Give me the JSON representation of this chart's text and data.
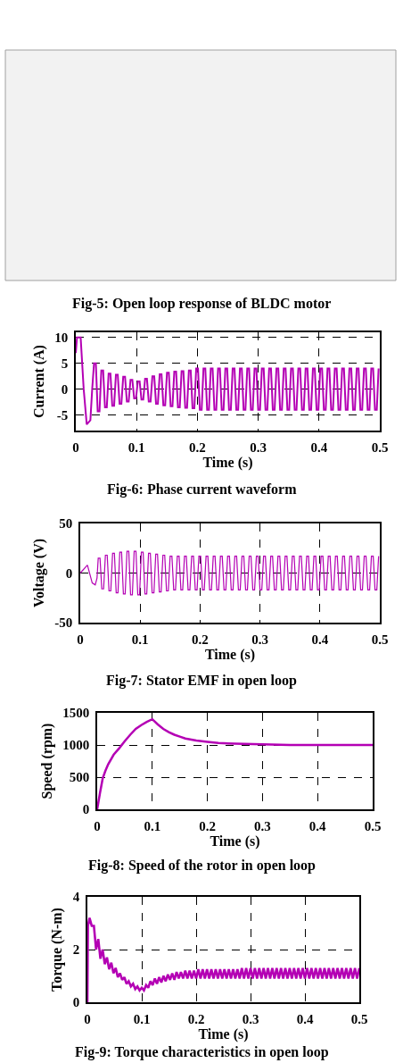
{
  "chart_data": [
    {
      "type": "other",
      "annotations": [
        "Fig-5: Open loop response of BLDC motor"
      ]
    },
    {
      "type": "line",
      "xlabel": "Time (s)",
      "ylabel": "Current (A)",
      "color": "#b400b4",
      "xlim": [
        0,
        0.5
      ],
      "ylim": [
        -8,
        11
      ],
      "xticks": [
        0,
        0.1,
        0.2,
        0.3,
        0.4,
        0.5
      ],
      "yticks": [
        -5,
        0,
        5,
        10
      ],
      "grid": true,
      "annotations": [
        "Fig-6: Phase current waveform"
      ],
      "x": [
        0,
        0.002,
        0.008,
        0.013,
        0.018,
        0.024,
        0.027,
        0.03,
        0.033,
        0.036,
        0.039,
        0.042,
        0.045,
        0.048,
        0.051,
        0.054,
        0.057,
        0.06,
        0.063,
        0.066,
        0.069,
        0.072,
        0.075,
        0.078,
        0.081,
        0.084,
        0.087,
        0.09,
        0.093,
        0.096,
        0.099,
        0.102,
        0.105,
        0.108,
        0.111,
        0.114,
        0.117,
        0.12,
        0.123,
        0.126,
        0.129,
        0.132,
        0.135,
        0.138,
        0.141,
        0.144,
        0.147,
        0.15,
        0.153,
        0.156,
        0.159,
        0.162,
        0.165,
        0.168,
        0.171,
        0.174,
        0.177,
        0.18,
        0.183,
        0.186,
        0.189,
        0.192,
        0.195,
        0.198,
        0.201,
        0.204,
        0.207,
        0.21,
        0.213,
        0.216,
        0.219,
        0.222,
        0.225,
        0.228,
        0.231,
        0.234,
        0.237,
        0.24,
        0.243,
        0.246,
        0.249,
        0.252,
        0.255,
        0.258,
        0.261,
        0.264,
        0.267,
        0.27,
        0.273,
        0.276,
        0.279,
        0.282,
        0.285,
        0.288,
        0.291,
        0.294,
        0.297,
        0.3,
        0.303,
        0.306,
        0.309,
        0.312,
        0.315,
        0.318,
        0.321,
        0.324,
        0.327,
        0.33,
        0.333,
        0.336,
        0.339,
        0.342,
        0.345,
        0.348,
        0.351,
        0.354,
        0.357,
        0.36,
        0.363,
        0.366,
        0.369,
        0.372,
        0.375,
        0.378,
        0.381,
        0.384,
        0.387,
        0.39,
        0.393,
        0.396,
        0.399,
        0.402,
        0.405,
        0.408,
        0.411,
        0.414,
        0.417,
        0.42,
        0.423,
        0.426,
        0.429,
        0.432,
        0.435,
        0.438,
        0.441,
        0.444,
        0.447,
        0.45,
        0.453,
        0.456,
        0.459,
        0.462,
        0.465,
        0.468,
        0.471,
        0.474,
        0.477,
        0.48,
        0.483,
        0.486,
        0.489,
        0.492,
        0.495,
        0.498
      ],
      "values": [
        7,
        10,
        10,
        0,
        -6.8,
        -6,
        0,
        5,
        5,
        -4.3,
        -4.3,
        3.6,
        3.6,
        -3.5,
        -3.5,
        3,
        3,
        -3.2,
        -3.2,
        2.8,
        2.8,
        -2.8,
        -2.8,
        2.4,
        2.4,
        -2.4,
        -2.4,
        1.8,
        1.8,
        -1.8,
        -1.8,
        1.5,
        1.5,
        -2,
        -2,
        2,
        2,
        -2.4,
        -2.4,
        2.5,
        2.5,
        -2.8,
        -2.8,
        2.9,
        2.9,
        -3.1,
        -3.1,
        3.2,
        3.2,
        -3.3,
        -3.3,
        3.4,
        3.4,
        -3.5,
        -3.5,
        3.5,
        3.5,
        -3.6,
        -3.6,
        3.6,
        3.6,
        -3.7,
        -3.7,
        4,
        4,
        -4,
        -4,
        4,
        4,
        -4,
        -4,
        4,
        4,
        -4,
        -4,
        4,
        4,
        -4,
        -4,
        4,
        4,
        -4,
        -4,
        4,
        4,
        -4,
        -4,
        4,
        4,
        -4,
        -4,
        4,
        4,
        -4,
        -4,
        4,
        4,
        -4,
        -4,
        4,
        4,
        -4,
        -4,
        4,
        4,
        -4,
        -4,
        4,
        4,
        -4,
        -4,
        4,
        4,
        -4,
        -4,
        4,
        4,
        -4,
        -4,
        4,
        4,
        -4,
        -4,
        4,
        4,
        -4,
        -4,
        4,
        4,
        -4,
        -4,
        4,
        4,
        -4,
        -4,
        4,
        4,
        -4,
        -4,
        4,
        4,
        -4,
        -4,
        4,
        4,
        -4,
        -4,
        4,
        4,
        -4,
        -4,
        4,
        4,
        -4,
        -4,
        4,
        4,
        -4,
        -4,
        4,
        4,
        -4,
        -4,
        4
      ]
    },
    {
      "type": "line",
      "xlabel": "Time (s)",
      "ylabel": "Voltage (V)",
      "color": "#b400b4",
      "xlim": [
        0,
        0.5
      ],
      "ylim": [
        -50,
        50
      ],
      "xticks": [
        0,
        0.1,
        0.2,
        0.3,
        0.4,
        0.5
      ],
      "yticks": [
        -50,
        0,
        50
      ],
      "grid": true,
      "annotations": [
        "Fig-7: Stator EMF in open loop"
      ],
      "x": [
        0,
        0.012,
        0.02,
        0.025,
        0.028,
        0.03,
        0.033,
        0.036,
        0.039,
        0.042,
        0.045,
        0.048,
        0.051,
        0.054,
        0.057,
        0.06,
        0.063,
        0.066,
        0.069,
        0.072,
        0.075,
        0.078,
        0.081,
        0.084,
        0.087,
        0.09,
        0.093,
        0.096,
        0.099,
        0.102,
        0.105,
        0.108,
        0.111,
        0.114,
        0.117,
        0.12,
        0.123,
        0.126,
        0.129,
        0.132,
        0.135,
        0.138,
        0.141,
        0.144,
        0.147,
        0.15,
        0.153,
        0.156,
        0.159,
        0.162,
        0.165,
        0.168,
        0.171,
        0.174,
        0.177,
        0.18,
        0.183,
        0.186,
        0.189,
        0.192,
        0.195,
        0.198,
        0.201,
        0.204,
        0.207,
        0.21,
        0.213,
        0.216,
        0.219,
        0.222,
        0.225,
        0.228,
        0.231,
        0.234,
        0.237,
        0.24,
        0.243,
        0.246,
        0.249,
        0.252,
        0.255,
        0.258,
        0.261,
        0.264,
        0.267,
        0.27,
        0.273,
        0.276,
        0.279,
        0.282,
        0.285,
        0.288,
        0.291,
        0.294,
        0.297,
        0.3,
        0.303,
        0.306,
        0.309,
        0.312,
        0.315,
        0.318,
        0.321,
        0.324,
        0.327,
        0.33,
        0.333,
        0.336,
        0.339,
        0.342,
        0.345,
        0.348,
        0.351,
        0.354,
        0.357,
        0.36,
        0.363,
        0.366,
        0.369,
        0.372,
        0.375,
        0.378,
        0.381,
        0.384,
        0.387,
        0.39,
        0.393,
        0.396,
        0.399,
        0.402,
        0.405,
        0.408,
        0.411,
        0.414,
        0.417,
        0.42,
        0.423,
        0.426,
        0.429,
        0.432,
        0.435,
        0.438,
        0.441,
        0.444,
        0.447,
        0.45,
        0.453,
        0.456,
        0.459,
        0.462,
        0.465,
        0.468,
        0.471,
        0.474,
        0.477,
        0.48,
        0.483,
        0.486,
        0.489,
        0.492,
        0.495,
        0.498
      ],
      "values": [
        0,
        8,
        -10,
        -12,
        -5,
        15,
        15,
        -16,
        -16,
        18,
        18,
        -18,
        -18,
        20,
        20,
        -20,
        -20,
        21,
        21,
        -21,
        -21,
        22,
        22,
        -22,
        -22,
        22,
        22,
        -22,
        -22,
        21,
        21,
        -21,
        -21,
        20,
        20,
        -20,
        -20,
        19,
        19,
        -19,
        -19,
        18,
        18,
        -18,
        -18,
        17,
        17,
        -17,
        -17,
        17,
        17,
        -17,
        -17,
        17,
        17,
        -17,
        -17,
        17,
        17,
        -17,
        -17,
        17,
        17,
        -17,
        -17,
        17,
        17,
        -17,
        -17,
        17,
        17,
        -17,
        -17,
        17,
        17,
        -17,
        -17,
        17,
        17,
        -17,
        -17,
        17,
        17,
        -17,
        -17,
        17,
        17,
        -17,
        -17,
        17,
        17,
        -17,
        -17,
        17,
        17,
        -17,
        -17,
        17,
        17,
        -17,
        -17,
        17,
        17,
        -17,
        -17,
        17,
        17,
        -17,
        -17,
        17,
        17,
        -17,
        -17,
        17,
        17,
        -17,
        -17,
        17,
        17,
        -17,
        -17,
        17,
        17,
        -17,
        -17,
        17,
        17,
        -17,
        -17,
        17,
        17,
        -17,
        -17,
        17,
        17,
        -17,
        -17,
        17,
        17,
        -17,
        -17,
        17,
        17,
        -17,
        -17,
        17,
        17,
        -17,
        -17,
        17,
        17,
        -17,
        -17,
        17,
        17,
        -17,
        -17,
        17,
        17,
        -17,
        -17,
        17
      ]
    },
    {
      "type": "line",
      "xlabel": "Time (s)",
      "ylabel": "Speed (rpm)",
      "color": "#b400b4",
      "xlim": [
        0,
        0.5
      ],
      "ylim": [
        0,
        1500
      ],
      "xticks": [
        0,
        0.1,
        0.2,
        0.3,
        0.4,
        0.5
      ],
      "yticks": [
        0,
        500,
        1000,
        1500
      ],
      "grid": true,
      "annotations": [
        "Fig-8: Speed of the rotor in open loop"
      ],
      "x": [
        0,
        0.002,
        0.005,
        0.01,
        0.015,
        0.02,
        0.03,
        0.04,
        0.05,
        0.06,
        0.07,
        0.08,
        0.09,
        0.1,
        0.11,
        0.12,
        0.13,
        0.14,
        0.15,
        0.16,
        0.18,
        0.2,
        0.22,
        0.25,
        0.3,
        0.35,
        0.4,
        0.5
      ],
      "values": [
        0,
        100,
        250,
        480,
        600,
        700,
        850,
        950,
        1060,
        1160,
        1250,
        1310,
        1360,
        1400,
        1320,
        1250,
        1200,
        1160,
        1130,
        1100,
        1070,
        1050,
        1030,
        1020,
        1010,
        1000,
        1000,
        1000
      ]
    },
    {
      "type": "line",
      "xlabel": "Time (s)",
      "ylabel": "Torque (N-m)",
      "color": "#b400b4",
      "xlim": [
        0,
        0.5
      ],
      "ylim": [
        0,
        4
      ],
      "xticks": [
        0,
        0.1,
        0.2,
        0.3,
        0.4,
        0.5
      ],
      "yticks": [
        0,
        2,
        4
      ],
      "grid": true,
      "annotations": [
        "Fig-9: Torque characteristics in open loop"
      ],
      "x": [
        0,
        0.001,
        0.004,
        0.008,
        0.012,
        0.016,
        0.02,
        0.024,
        0.028,
        0.032,
        0.036,
        0.04,
        0.044,
        0.048,
        0.052,
        0.056,
        0.06,
        0.064,
        0.068,
        0.072,
        0.076,
        0.08,
        0.084,
        0.088,
        0.092,
        0.096,
        0.1,
        0.104,
        0.108,
        0.112,
        0.116,
        0.12,
        0.124,
        0.128,
        0.132,
        0.136,
        0.14,
        0.144,
        0.148,
        0.152,
        0.156,
        0.16,
        0.164,
        0.168,
        0.172,
        0.176,
        0.18,
        0.184,
        0.188,
        0.192,
        0.196,
        0.2,
        0.204,
        0.208,
        0.212,
        0.216,
        0.22,
        0.224,
        0.228,
        0.232,
        0.236,
        0.24,
        0.244,
        0.248,
        0.252,
        0.256,
        0.26,
        0.264,
        0.268,
        0.272,
        0.276,
        0.28,
        0.284,
        0.288,
        0.292,
        0.296,
        0.3,
        0.304,
        0.308,
        0.312,
        0.316,
        0.32,
        0.324,
        0.328,
        0.332,
        0.336,
        0.34,
        0.344,
        0.348,
        0.352,
        0.356,
        0.36,
        0.364,
        0.368,
        0.372,
        0.376,
        0.38,
        0.384,
        0.388,
        0.392,
        0.396,
        0.4,
        0.404,
        0.408,
        0.412,
        0.416,
        0.42,
        0.424,
        0.428,
        0.432,
        0.436,
        0.44,
        0.444,
        0.448,
        0.452,
        0.456,
        0.46,
        0.464,
        0.468,
        0.472,
        0.476,
        0.48,
        0.484,
        0.488,
        0.492,
        0.496,
        0.5
      ],
      "values": [
        0,
        2.9,
        3.2,
        2.9,
        2.9,
        2,
        2.4,
        1.65,
        2,
        1.45,
        1.7,
        1.25,
        1.5,
        1.1,
        1.3,
        0.95,
        1.1,
        0.85,
        0.95,
        0.7,
        0.8,
        0.6,
        0.7,
        0.5,
        0.6,
        0.45,
        0.55,
        0.45,
        0.65,
        0.55,
        0.8,
        0.65,
        0.9,
        0.7,
        0.95,
        0.75,
        1,
        0.8,
        1.05,
        0.85,
        1.1,
        0.85,
        1.15,
        0.9,
        1.15,
        0.9,
        1.2,
        0.9,
        1.2,
        0.9,
        1.2,
        0.9,
        1.25,
        0.9,
        1.25,
        0.9,
        1.25,
        0.9,
        1.25,
        0.9,
        1.25,
        0.9,
        1.25,
        0.9,
        1.25,
        0.9,
        1.25,
        0.9,
        1.25,
        0.9,
        1.25,
        0.9,
        1.3,
        0.9,
        1.3,
        0.9,
        1.3,
        0.9,
        1.3,
        0.9,
        1.3,
        0.9,
        1.3,
        0.9,
        1.3,
        0.9,
        1.3,
        0.9,
        1.3,
        0.9,
        1.3,
        0.9,
        1.3,
        0.9,
        1.3,
        0.9,
        1.3,
        0.9,
        1.3,
        0.9,
        1.3,
        0.9,
        1.3,
        0.9,
        1.3,
        0.9,
        1.3,
        0.9,
        1.3,
        0.9,
        1.3,
        0.9,
        1.3,
        0.9,
        1.3,
        0.9,
        1.3,
        0.9,
        1.3,
        0.9,
        1.3,
        0.9,
        1.3,
        0.9,
        1.3,
        0.9,
        1.3
      ]
    }
  ]
}
